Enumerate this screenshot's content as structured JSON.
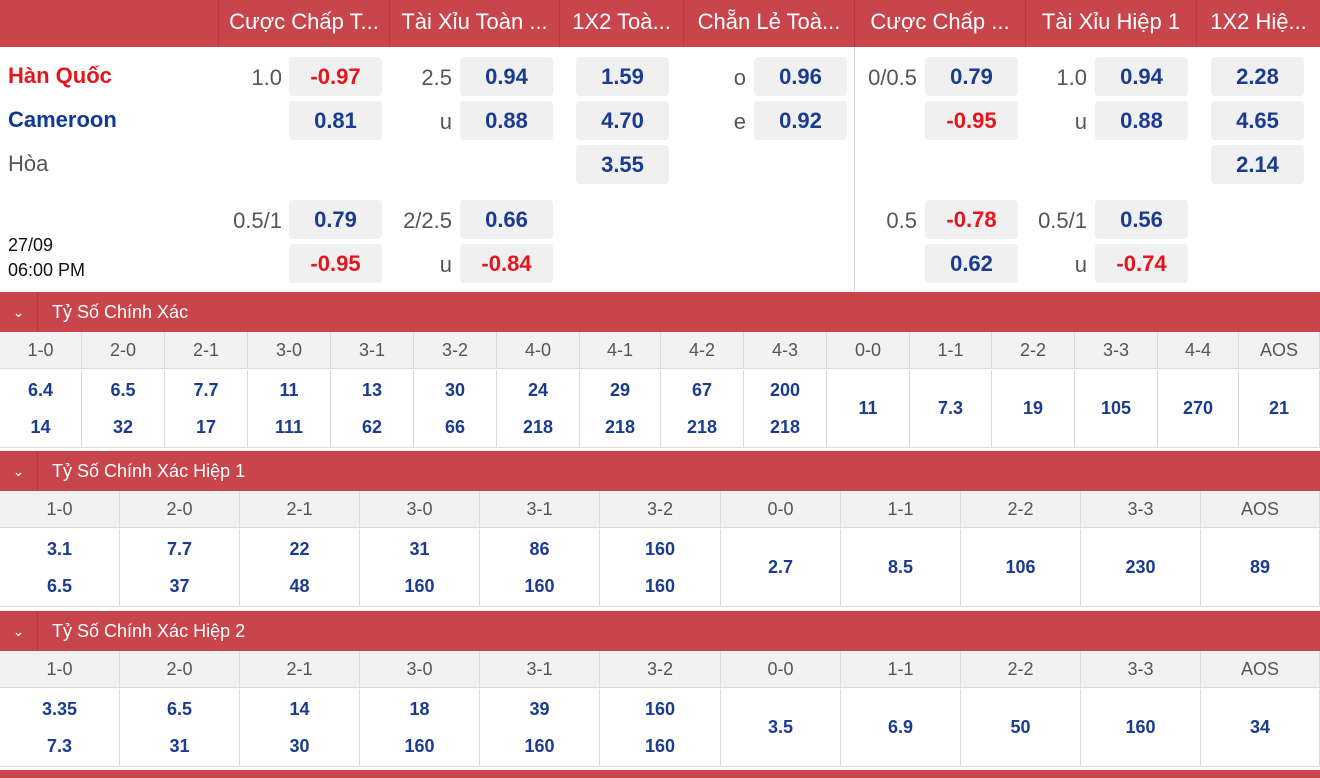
{
  "header": {
    "columns": [
      "Cược Chấp T...",
      "Tài Xỉu Toàn ...",
      "1X2 Toà...",
      "Chẵn Lẻ Toà...",
      "Cược Chấp ...",
      "Tài Xỉu Hiệp 1",
      "1X2 Hiệ..."
    ]
  },
  "match": {
    "home": "Hàn Quốc",
    "away": "Cameroon",
    "draw": "Hòa",
    "date": "27/09",
    "time": "06:00 PM"
  },
  "odds": {
    "row1": {
      "ah_line": "1.0",
      "ah_home": "-0.97",
      "ah_away": "0.81",
      "ou_line": "2.5",
      "ou_over": "0.94",
      "ou_u": "u",
      "ou_under": "0.88",
      "x12_home": "1.59",
      "x12_away": "4.70",
      "x12_draw": "3.55",
      "oe_o": "o",
      "oe_odd": "0.96",
      "oe_e": "e",
      "oe_even": "0.92",
      "h1_ah_line": "0/0.5",
      "h1_ah_home": "0.79",
      "h1_ah_away": "-0.95",
      "h1_ou_line": "1.0",
      "h1_ou_over": "0.94",
      "h1_ou_u": "u",
      "h1_ou_under": "0.88",
      "h1_x12_home": "2.28",
      "h1_x12_away": "4.65",
      "h1_x12_draw": "2.14"
    },
    "row2": {
      "ah_line": "0.5/1",
      "ah_home": "0.79",
      "ah_away": "-0.95",
      "ou_line": "2/2.5",
      "ou_over": "0.66",
      "ou_u": "u",
      "ou_under": "-0.84",
      "h1_ah_line": "0.5",
      "h1_ah_home": "-0.78",
      "h1_ah_away": "0.62",
      "h1_ou_line": "0.5/1",
      "h1_ou_over": "0.56",
      "h1_ou_u": "u",
      "h1_ou_under": "-0.74"
    }
  },
  "sections": [
    {
      "title": "Tỷ Số Chính Xác",
      "cols": [
        {
          "label": "1-0",
          "top": "6.4",
          "bottom": "14"
        },
        {
          "label": "2-0",
          "top": "6.5",
          "bottom": "32"
        },
        {
          "label": "2-1",
          "top": "7.7",
          "bottom": "17"
        },
        {
          "label": "3-0",
          "top": "11",
          "bottom": "111"
        },
        {
          "label": "3-1",
          "top": "13",
          "bottom": "62"
        },
        {
          "label": "3-2",
          "top": "30",
          "bottom": "66"
        },
        {
          "label": "4-0",
          "top": "24",
          "bottom": "218"
        },
        {
          "label": "4-1",
          "top": "29",
          "bottom": "218"
        },
        {
          "label": "4-2",
          "top": "67",
          "bottom": "218"
        },
        {
          "label": "4-3",
          "top": "200",
          "bottom": "218"
        },
        {
          "label": "0-0",
          "single": "11"
        },
        {
          "label": "1-1",
          "single": "7.3"
        },
        {
          "label": "2-2",
          "single": "19"
        },
        {
          "label": "3-3",
          "single": "105"
        },
        {
          "label": "4-4",
          "single": "270"
        },
        {
          "label": "AOS",
          "single": "21"
        }
      ]
    },
    {
      "title": "Tỷ Số Chính Xác Hiệp 1",
      "cols": [
        {
          "label": "1-0",
          "top": "3.1",
          "bottom": "6.5"
        },
        {
          "label": "2-0",
          "top": "7.7",
          "bottom": "37"
        },
        {
          "label": "2-1",
          "top": "22",
          "bottom": "48"
        },
        {
          "label": "3-0",
          "top": "31",
          "bottom": "160"
        },
        {
          "label": "3-1",
          "top": "86",
          "bottom": "160"
        },
        {
          "label": "3-2",
          "top": "160",
          "bottom": "160"
        },
        {
          "label": "0-0",
          "single": "2.7"
        },
        {
          "label": "1-1",
          "single": "8.5"
        },
        {
          "label": "2-2",
          "single": "106"
        },
        {
          "label": "3-3",
          "single": "230"
        },
        {
          "label": "AOS",
          "single": "89"
        }
      ]
    },
    {
      "title": "Tỷ Số Chính Xác Hiệp 2",
      "cols": [
        {
          "label": "1-0",
          "top": "3.35",
          "bottom": "7.3"
        },
        {
          "label": "2-0",
          "top": "6.5",
          "bottom": "31"
        },
        {
          "label": "2-1",
          "top": "14",
          "bottom": "30"
        },
        {
          "label": "3-0",
          "top": "18",
          "bottom": "160"
        },
        {
          "label": "3-1",
          "top": "39",
          "bottom": "160"
        },
        {
          "label": "3-2",
          "top": "160",
          "bottom": "160"
        },
        {
          "label": "0-0",
          "single": "3.5"
        },
        {
          "label": "1-1",
          "single": "6.9"
        },
        {
          "label": "2-2",
          "single": "50"
        },
        {
          "label": "3-3",
          "single": "160"
        },
        {
          "label": "AOS",
          "single": "34"
        }
      ]
    }
  ],
  "icons": {
    "chevron": "chevron-down-icon"
  },
  "colors": {
    "header_bg": "#c8454c",
    "odds_blue": "#1a3b8f",
    "odds_red": "#e8141c"
  }
}
